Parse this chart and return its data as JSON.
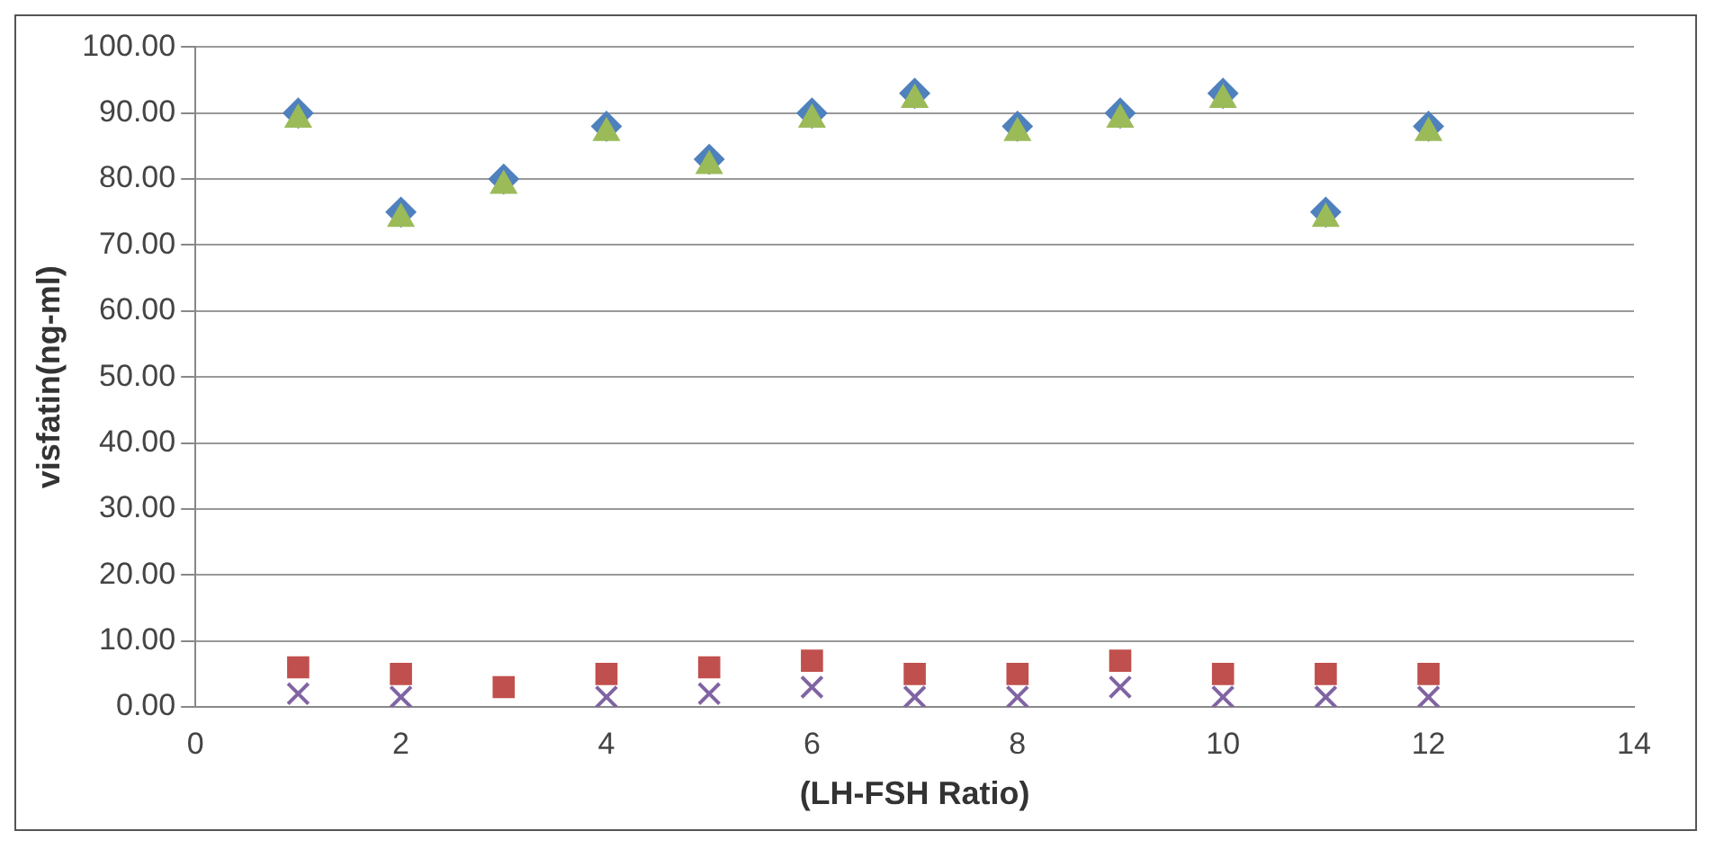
{
  "chart_data": {
    "type": "scatter",
    "xlabel": "(LH-FSH Ratio)",
    "ylabel": "visfatin(ng-ml)",
    "x": [
      1,
      2,
      3,
      4,
      5,
      6,
      7,
      8,
      9,
      10,
      11,
      12
    ],
    "series": [
      {
        "marker": "triangle",
        "color": "#9bbb59",
        "values": [
          89,
          74,
          79,
          87,
          82,
          89,
          92,
          87,
          89,
          92,
          74,
          87
        ]
      },
      {
        "marker": "diamond",
        "color": "#4f81bd",
        "values": [
          90,
          75,
          80,
          88,
          83,
          90,
          93,
          88,
          90,
          93,
          75,
          88
        ]
      },
      {
        "marker": "cross",
        "color": "#8064a2",
        "values": [
          2,
          1.5,
          null,
          1.5,
          2,
          3,
          1.5,
          1.5,
          3,
          1.5,
          1.5,
          1.5
        ]
      },
      {
        "marker": "square",
        "color": "#c0504d",
        "values": [
          6,
          5,
          3,
          5,
          6,
          7,
          5,
          5,
          7,
          5,
          5,
          5
        ]
      }
    ],
    "xlim": [
      0,
      14
    ],
    "xticks": [
      0,
      2,
      4,
      6,
      8,
      10,
      12,
      14
    ],
    "ylim": [
      0,
      100
    ],
    "yticks": [
      {
        "value": 0,
        "label": "0.00"
      },
      {
        "value": 10,
        "label": "10.00"
      },
      {
        "value": 20,
        "label": "20.00"
      },
      {
        "value": 30,
        "label": "30.00"
      },
      {
        "value": 40,
        "label": "40.00"
      },
      {
        "value": 50,
        "label": "50.00"
      },
      {
        "value": 60,
        "label": "60.00"
      },
      {
        "value": 70,
        "label": "70.00"
      },
      {
        "value": 80,
        "label": "80.00"
      },
      {
        "value": 90,
        "label": "90.00"
      },
      {
        "value": 100,
        "label": "100.00"
      }
    ],
    "grid": "y",
    "legend": false
  }
}
